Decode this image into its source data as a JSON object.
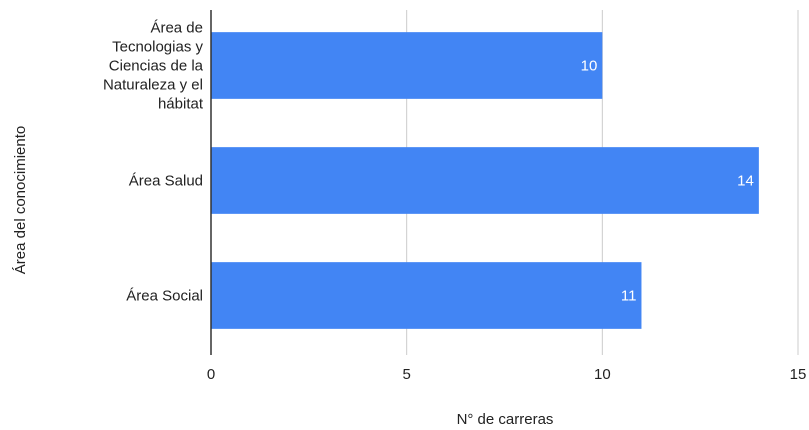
{
  "chart_data": {
    "type": "bar",
    "orientation": "horizontal",
    "categories": [
      "Área de Tecnologias y Ciencias de la Naturaleza y el hábitat",
      "Área Salud",
      "Área Social"
    ],
    "category_label_lines": [
      [
        "Área de",
        "Tecnologias y",
        "Ciencias de la",
        "Naturaleza y el",
        "hábitat"
      ],
      [
        "Área Salud"
      ],
      [
        "Área Social"
      ]
    ],
    "values": [
      10,
      14,
      11
    ],
    "data_labels": [
      "10",
      "14",
      "11"
    ],
    "xlabel": "N° de carreras",
    "ylabel": "Área del conocimiento",
    "xlim": [
      0,
      15
    ],
    "x_ticks": [
      0,
      5,
      10,
      15
    ],
    "x_tick_labels": [
      "0",
      "5",
      "10",
      "15"
    ],
    "grid": true,
    "legend": "none",
    "colors": {
      "bar": "#4285f4",
      "grid": "#cccccc",
      "axis": "#333333",
      "text": "#222222",
      "data_label": "#ffffff"
    }
  }
}
